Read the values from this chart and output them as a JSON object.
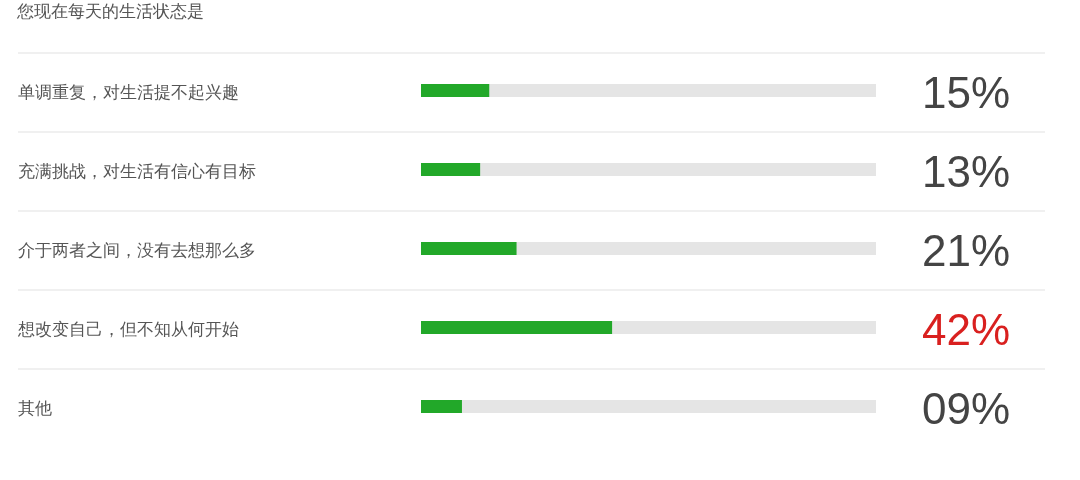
{
  "chart_data": {
    "type": "bar",
    "orientation": "horizontal",
    "title": "您现在每天的生活状态是",
    "categories": [
      "单调重复，对生活提不起兴趣",
      "充满挑战，对生活有信心有目标",
      "介于两者之间，没有去想那么多",
      "想改变自己，但不知从何开始",
      "其他"
    ],
    "values": [
      15,
      13,
      21,
      42,
      9
    ],
    "value_labels": [
      "15%",
      "13%",
      "21%",
      "42%",
      "09%"
    ],
    "color": "#22a829",
    "xlim": [
      0,
      100
    ],
    "grid": "y",
    "tick_labels": "y"
  }
}
